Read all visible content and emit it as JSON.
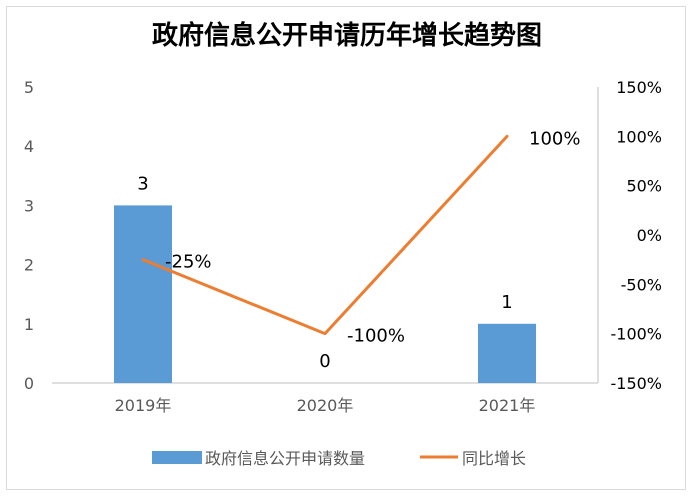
{
  "chart_data": {
    "type": "bar",
    "title": "政府信息公开申请历年增长趋势图",
    "categories": [
      "2019年",
      "2020年",
      "2021年"
    ],
    "series": [
      {
        "name": "政府信息公开申请数量",
        "type": "bar",
        "axis": "left",
        "values": [
          3,
          0,
          1
        ],
        "labels": [
          "3",
          "0",
          "1"
        ],
        "color": "#5b9bd5"
      },
      {
        "name": "同比增长",
        "type": "line",
        "axis": "right",
        "values": [
          -25,
          -100,
          100
        ],
        "labels": [
          "-25%",
          "-100%",
          "100%"
        ],
        "color": "#ed7d31"
      }
    ],
    "y_left": {
      "range": [
        0,
        5
      ],
      "ticks": [
        "0",
        "1",
        "2",
        "3",
        "4",
        "5"
      ]
    },
    "y_right": {
      "range": [
        -150,
        150
      ],
      "ticks": [
        "-150%",
        "-100%",
        "-50%",
        "0%",
        "50%",
        "100%",
        "150%"
      ]
    },
    "legend": "bottom",
    "grid": false
  }
}
